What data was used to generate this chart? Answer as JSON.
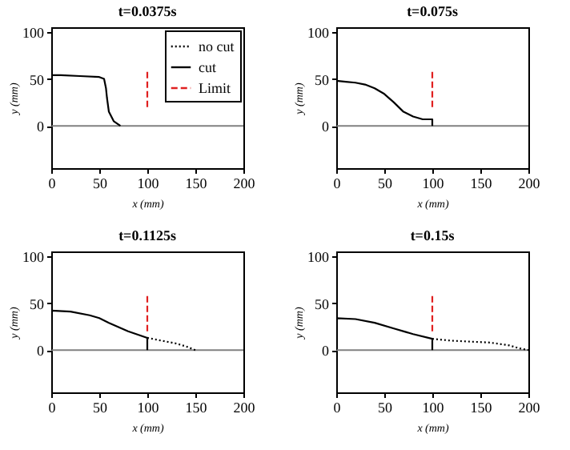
{
  "chart_data": [
    {
      "type": "line",
      "title": "t=0.0375s",
      "xlabel": "x (mm)",
      "ylabel": "y (mm)",
      "xlim": [
        0,
        200
      ],
      "ylim": [
        -45,
        105
      ],
      "xticks": [
        0,
        50,
        100,
        150,
        200
      ],
      "yticks": [
        0,
        50,
        100
      ],
      "legend": "top right",
      "ref_lines": [
        {
          "axis": "y",
          "value": 0,
          "color": "#808080"
        }
      ],
      "series": [
        {
          "name": "no cut",
          "color": "#000000",
          "line_style": "dotted"
        },
        {
          "name": "cut",
          "color": "#000000",
          "line_style": "solid",
          "x": [
            0,
            0,
            10,
            30,
            50,
            55,
            57,
            58,
            60,
            65,
            72
          ],
          "values": [
            0,
            54,
            54,
            53,
            52,
            50,
            40,
            30,
            15,
            5,
            0
          ]
        },
        {
          "name": "Limit",
          "color": "#e02020",
          "line_style": "dashed",
          "x": [
            100,
            100
          ],
          "values": [
            20,
            60
          ]
        }
      ]
    },
    {
      "type": "line",
      "title": "t=0.075s",
      "xlabel": "x (mm)",
      "ylabel": "y (mm)",
      "xlim": [
        0,
        200
      ],
      "ylim": [
        -45,
        105
      ],
      "xticks": [
        0,
        50,
        100,
        150,
        200
      ],
      "yticks": [
        0,
        50,
        100
      ],
      "ref_lines": [
        {
          "axis": "y",
          "value": 0,
          "color": "#808080"
        }
      ],
      "series": [
        {
          "color": "#000000",
          "line_style": "solid",
          "x": [
            0,
            0,
            10,
            20,
            30,
            40,
            50,
            60,
            70,
            80,
            90,
            100,
            100
          ],
          "values": [
            0,
            48,
            47,
            46,
            44,
            40,
            34,
            25,
            15,
            10,
            7,
            7,
            0
          ]
        },
        {
          "color": "#e02020",
          "line_style": "dashed",
          "x": [
            100,
            100
          ],
          "values": [
            20,
            60
          ]
        }
      ]
    },
    {
      "type": "line",
      "title": "t=0.1125s",
      "xlabel": "x (mm)",
      "ylabel": "y (mm)",
      "xlim": [
        0,
        200
      ],
      "ylim": [
        -45,
        105
      ],
      "xticks": [
        0,
        50,
        100,
        150,
        200
      ],
      "yticks": [
        0,
        50,
        100
      ],
      "ref_lines": [
        {
          "axis": "y",
          "value": 0,
          "color": "#808080"
        }
      ],
      "series": [
        {
          "color": "#000000",
          "line_style": "dotted",
          "x": [
            100,
            110,
            120,
            130,
            140,
            150
          ],
          "values": [
            13,
            11,
            9,
            7,
            4,
            0
          ]
        },
        {
          "color": "#000000",
          "line_style": "solid",
          "x": [
            0,
            0,
            20,
            40,
            50,
            60,
            80,
            100,
            100
          ],
          "values": [
            0,
            42,
            41,
            37,
            34,
            29,
            20,
            13,
            0
          ]
        },
        {
          "color": "#e02020",
          "line_style": "dashed",
          "x": [
            100,
            100
          ],
          "values": [
            20,
            60
          ]
        }
      ]
    },
    {
      "type": "line",
      "title": "t=0.15s",
      "xlabel": "x (mm)",
      "ylabel": "y (mm)",
      "xlim": [
        0,
        200
      ],
      "ylim": [
        -45,
        105
      ],
      "xticks": [
        0,
        50,
        100,
        150,
        200
      ],
      "yticks": [
        0,
        50,
        100
      ],
      "ref_lines": [
        {
          "axis": "y",
          "value": 0,
          "color": "#808080"
        }
      ],
      "series": [
        {
          "color": "#000000",
          "line_style": "dotted",
          "x": [
            100,
            120,
            140,
            160,
            180,
            190,
            200
          ],
          "values": [
            12,
            10,
            9,
            8,
            5,
            2,
            0
          ]
        },
        {
          "color": "#000000",
          "line_style": "solid",
          "x": [
            0,
            0,
            20,
            40,
            60,
            80,
            100,
            100
          ],
          "values": [
            0,
            34,
            33,
            29,
            23,
            17,
            12,
            0
          ]
        },
        {
          "color": "#e02020",
          "line_style": "dashed",
          "x": [
            100,
            100
          ],
          "values": [
            20,
            60
          ]
        }
      ]
    }
  ]
}
